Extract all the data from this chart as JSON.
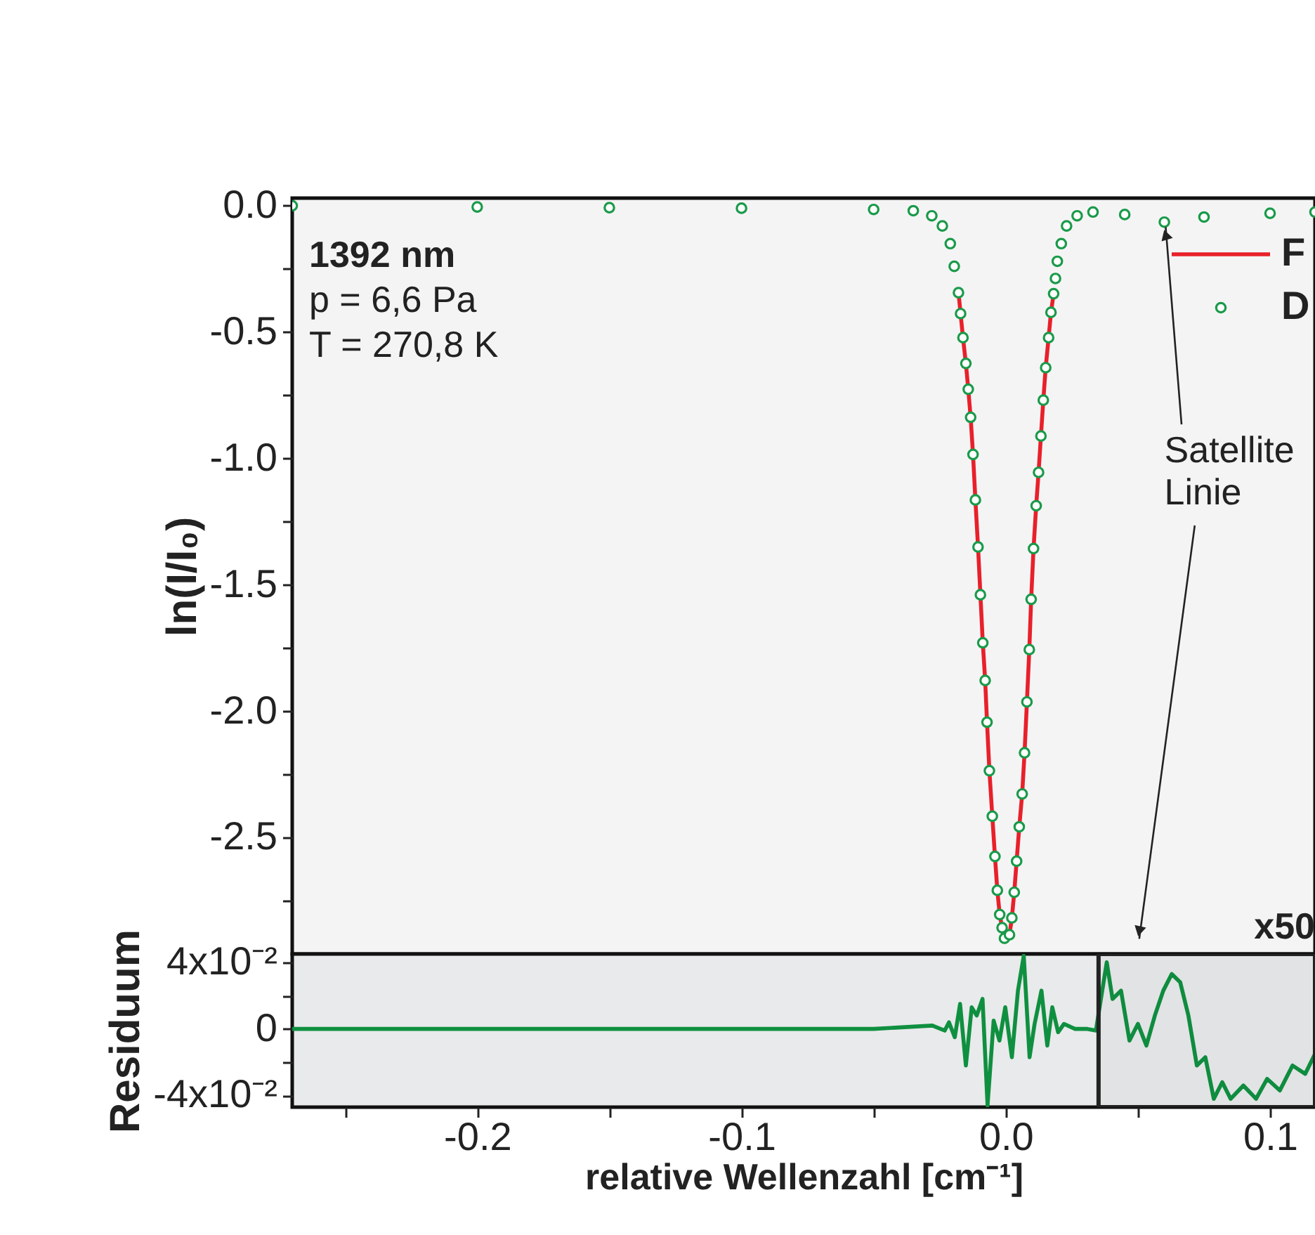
{
  "chart_data": [
    {
      "type": "line",
      "ylabel": "ln(I/I₀)",
      "xlim": [
        -0.27,
        0.117
      ],
      "ylim": [
        -2.96,
        0.03
      ],
      "tick_labels": "y",
      "legend": "top right",
      "xticks": [
        {
          "value": -0.25,
          "label": null
        },
        {
          "value": -0.2,
          "label": null
        },
        {
          "value": -0.15,
          "label": null
        },
        {
          "value": -0.1,
          "label": null
        },
        {
          "value": -0.05,
          "label": null
        },
        {
          "value": 0,
          "label": null
        },
        {
          "value": 0.05,
          "label": null
        },
        {
          "value": 0.1,
          "label": null
        }
      ],
      "yticks": [
        {
          "value": 0,
          "label": "0.0"
        },
        {
          "value": -0.25,
          "label": null
        },
        -0.5,
        {
          "value": -0.75,
          "label": null
        },
        {
          "value": -1,
          "label": "-1.0"
        },
        {
          "value": -1.25,
          "label": null
        },
        -1.5,
        {
          "value": -1.75,
          "label": null
        },
        {
          "value": -2,
          "label": "-2.0"
        },
        {
          "value": -2.25,
          "label": null
        },
        -2.5,
        {
          "value": -2.75,
          "label": null
        }
      ],
      "annotations": [
        "1392 nm",
        "p = 6,6 Pa",
        "T = 270,8 K",
        {
          "text": "Satellite\nLinie",
          "x": 0.06,
          "y": -0.065
        }
      ],
      "series": [
        {
          "name": "F",
          "type": "line",
          "color": "#e8202a",
          "x": [
            -0.0179,
            -0.0171,
            -0.0162,
            -0.0151,
            -0.0142,
            -0.0133,
            -0.0124,
            -0.0115,
            -0.0105,
            -0.0096,
            -0.0087,
            -0.0078,
            -0.0071,
            -0.0062,
            -0.0051,
            -0.0041,
            -0.0032,
            -0.0023,
            -0.0014,
            -0.0005,
            0.0014,
            0.0023,
            0.0032,
            0.0041,
            0.0051,
            0.0062,
            0.0071,
            0.008,
            0.0089,
            0.0096,
            0.0105,
            0.0115,
            0.0124,
            0.0133,
            0.0142,
            0.0151,
            0.0162,
            0.0171,
            0.0181
          ],
          "values": [
            -0.344,
            -0.427,
            -0.522,
            -0.624,
            -0.726,
            -0.837,
            -0.984,
            -1.164,
            -1.35,
            -1.539,
            -1.729,
            -1.878,
            -2.043,
            -2.235,
            -2.415,
            -2.574,
            -2.708,
            -2.804,
            -2.856,
            -2.898,
            -2.884,
            -2.817,
            -2.716,
            -2.593,
            -2.457,
            -2.327,
            -2.164,
            -1.963,
            -1.756,
            -1.557,
            -1.356,
            -1.187,
            -1.055,
            -0.911,
            -0.769,
            -0.641,
            -0.522,
            -0.422,
            -0.348
          ]
        },
        {
          "name": "D",
          "type": "scatter",
          "marker": "circle",
          "color": "#1a9a4a",
          "x": [
            -0.27,
            -0.2,
            -0.15,
            -0.1,
            -0.05,
            -0.035,
            -0.028,
            -0.024,
            -0.021,
            -0.0195,
            -0.0179,
            -0.0171,
            -0.0162,
            -0.0151,
            -0.0142,
            -0.0133,
            -0.0124,
            -0.0115,
            -0.0105,
            -0.0096,
            -0.0087,
            -0.0078,
            -0.0071,
            -0.0062,
            -0.0051,
            -0.0041,
            -0.0032,
            -0.0023,
            -0.0014,
            -0.0005,
            0.0014,
            0.0023,
            0.0032,
            0.0041,
            0.0051,
            0.0062,
            0.0071,
            0.008,
            0.0089,
            0.0096,
            0.0105,
            0.0115,
            0.0124,
            0.0133,
            0.0142,
            0.0151,
            0.0162,
            0.0171,
            0.0181,
            0.0188,
            0.0195,
            0.021,
            0.023,
            0.027,
            0.033,
            0.045,
            0.06,
            0.075,
            0.1,
            0.117
          ],
          "values": [
            0,
            -0.005,
            -0.008,
            -0.01,
            -0.015,
            -0.02,
            -0.04,
            -0.08,
            -0.15,
            -0.24,
            -0.344,
            -0.427,
            -0.522,
            -0.624,
            -0.726,
            -0.837,
            -0.984,
            -1.164,
            -1.35,
            -1.539,
            -1.729,
            -1.878,
            -2.043,
            -2.235,
            -2.415,
            -2.574,
            -2.708,
            -2.804,
            -2.856,
            -2.898,
            -2.884,
            -2.817,
            -2.716,
            -2.593,
            -2.457,
            -2.327,
            -2.164,
            -1.963,
            -1.756,
            -1.557,
            -1.356,
            -1.187,
            -1.055,
            -0.911,
            -0.769,
            -0.641,
            -0.522,
            -0.422,
            -0.348,
            -0.288,
            -0.22,
            -0.15,
            -0.08,
            -0.04,
            -0.025,
            -0.035,
            -0.065,
            -0.045,
            -0.03,
            -0.025
          ]
        }
      ]
    },
    {
      "type": "line",
      "xlabel": "relative Wellenzahl [cm⁻¹]",
      "ylabel": "Residuum",
      "xlim": [
        -0.27,
        0.117
      ],
      "ylim": [
        -0.047,
        0.045
      ],
      "color": "#0f9040",
      "xticks": [
        {
          "value": -0.25,
          "label": null
        },
        -0.2,
        {
          "value": -0.15,
          "label": null
        },
        -0.1,
        {
          "value": -0.05,
          "label": null
        },
        {
          "value": 0,
          "label": "0.0"
        },
        {
          "value": 0.05,
          "label": null
        },
        0.1
      ],
      "yticks": [
        {
          "value": 0.04,
          "label": "4x10⁻²"
        },
        {
          "value": 0.02,
          "label": null
        },
        0,
        {
          "value": -0.02,
          "label": null
        },
        {
          "value": -0.04,
          "label": "-4x10⁻²"
        }
      ],
      "bands": [
        {
          "axis": "x",
          "from": 0.0351,
          "to": 0.117,
          "label": "x50"
        }
      ],
      "x": [
        -0.27,
        -0.2,
        -0.1,
        -0.05,
        -0.0278,
        -0.0231,
        -0.0215,
        -0.0193,
        -0.0173,
        -0.0151,
        -0.0129,
        -0.011,
        -0.0088,
        -0.0069,
        -0.0046,
        -0.0024,
        -0.0002,
        0.0023,
        0.0046,
        0.0068,
        0.009,
        0.0109,
        0.0135,
        0.0157,
        0.0176,
        0.0198,
        0.022,
        0.0262,
        0.0309,
        0.0341,
        0.0382,
        0.0404,
        0.0436,
        0.0468,
        0.05,
        0.0532,
        0.0564,
        0.0596,
        0.0628,
        0.066,
        0.0691,
        0.0723,
        0.0755,
        0.0787,
        0.0819,
        0.0851,
        0.0899,
        0.0947,
        0.0989,
        0.1037,
        0.1085,
        0.1133,
        0.117
      ],
      "values": [
        0,
        0,
        0,
        0,
        0.002,
        -0.001,
        0.004,
        -0.005,
        0.015,
        -0.022,
        0.013,
        0.008,
        0.018,
        -0.046,
        0.005,
        -0.007,
        0.013,
        -0.017,
        0.023,
        0.044,
        -0.017,
        0.003,
        0.023,
        -0.01,
        0.013,
        -0.002,
        0.003,
        0,
        0,
        -0.001,
        0.04,
        0.018,
        0.023,
        -0.007,
        0.003,
        -0.01,
        0.008,
        0.023,
        0.033,
        0.028,
        0.008,
        -0.022,
        -0.017,
        -0.042,
        -0.032,
        -0.042,
        -0.034,
        -0.042,
        -0.03,
        -0.037,
        -0.022,
        -0.027,
        -0.015
      ]
    }
  ]
}
